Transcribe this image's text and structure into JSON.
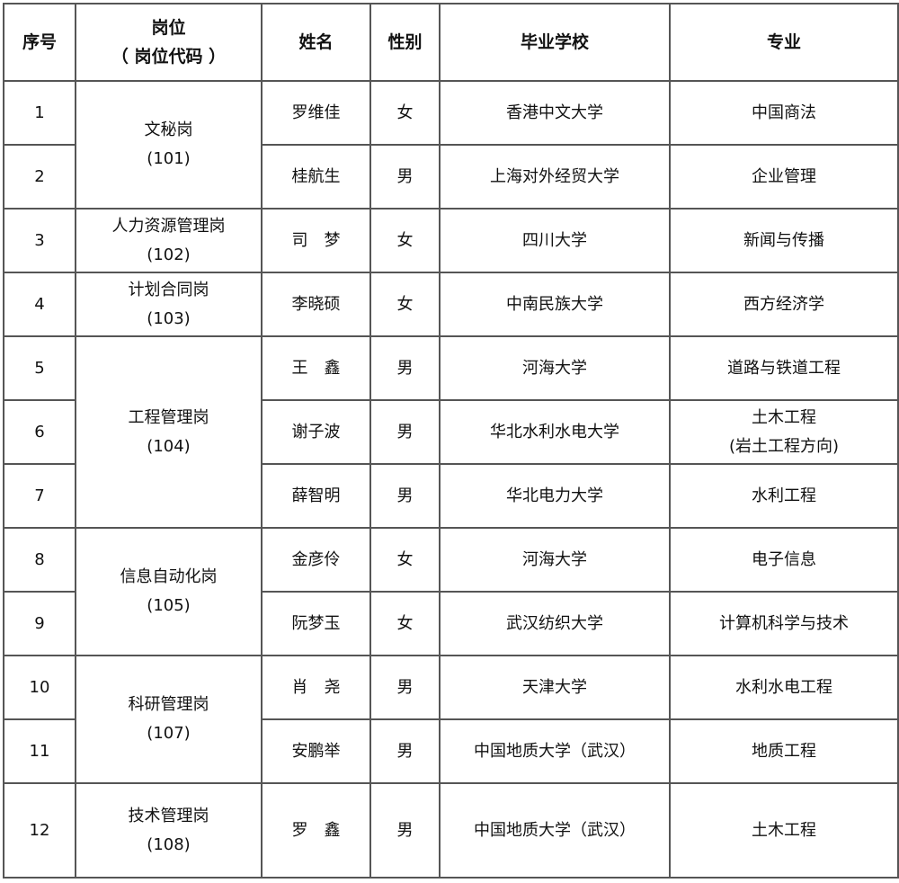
{
  "headers": [
    "序号",
    [
      "岗位",
      "（ 岗位代码 ）"
    ],
    "姓名",
    "性别",
    "毕业学校",
    "专业"
  ],
  "groups": [
    {
      "position": "文秘岗",
      "code": "(101)",
      "rows": [
        {
          "no": "1",
          "name": "罗维佳",
          "gender": "女",
          "school": "香港中文大学",
          "major": [
            "中国商法"
          ]
        },
        {
          "no": "2",
          "name": "桂航生",
          "gender": "男",
          "school": "上海对外经贸大学",
          "major": [
            "企业管理"
          ]
        }
      ]
    },
    {
      "position": "人力资源管理岗",
      "code": "(102)",
      "rows": [
        {
          "no": "3",
          "name": "司　梦",
          "gender": "女",
          "school": "四川大学",
          "major": [
            "新闻与传播"
          ]
        }
      ]
    },
    {
      "position": "计划合同岗",
      "code": "(103)",
      "rows": [
        {
          "no": "4",
          "name": "李晓硕",
          "gender": "女",
          "school": "中南民族大学",
          "major": [
            "西方经济学"
          ]
        }
      ]
    },
    {
      "position": "工程管理岗",
      "code": "(104)",
      "rows": [
        {
          "no": "5",
          "name": "王　鑫",
          "gender": "男",
          "school": "河海大学",
          "major": [
            "道路与铁道工程"
          ]
        },
        {
          "no": "6",
          "name": "谢子波",
          "gender": "男",
          "school": "华北水利水电大学",
          "major": [
            "土木工程",
            "(岩土工程方向)"
          ]
        },
        {
          "no": "7",
          "name": "薛智明",
          "gender": "男",
          "school": "华北电力大学",
          "major": [
            "水利工程"
          ]
        }
      ]
    },
    {
      "position": "信息自动化岗",
      "code": "(105)",
      "rows": [
        {
          "no": "8",
          "name": "金彦伶",
          "gender": "女",
          "school": "河海大学",
          "major": [
            "电子信息"
          ]
        },
        {
          "no": "9",
          "name": "阮梦玉",
          "gender": "女",
          "school": "武汉纺织大学",
          "major": [
            "计算机科学与技术"
          ]
        }
      ]
    },
    {
      "position": "科研管理岗",
      "code": "(107)",
      "rows": [
        {
          "no": "10",
          "name": "肖　尧",
          "gender": "男",
          "school": "天津大学",
          "major": [
            "水利水电工程"
          ]
        },
        {
          "no": "11",
          "name": "安鹏举",
          "gender": "男",
          "school": "中国地质大学（武汉）",
          "major": [
            "地质工程"
          ]
        }
      ]
    },
    {
      "position": "技术管理岗",
      "code": "(108)",
      "rows": [
        {
          "no": "12",
          "name": "罗　鑫",
          "gender": "男",
          "school": "中国地质大学（武汉）",
          "major": [
            "土木工程"
          ]
        }
      ]
    }
  ]
}
